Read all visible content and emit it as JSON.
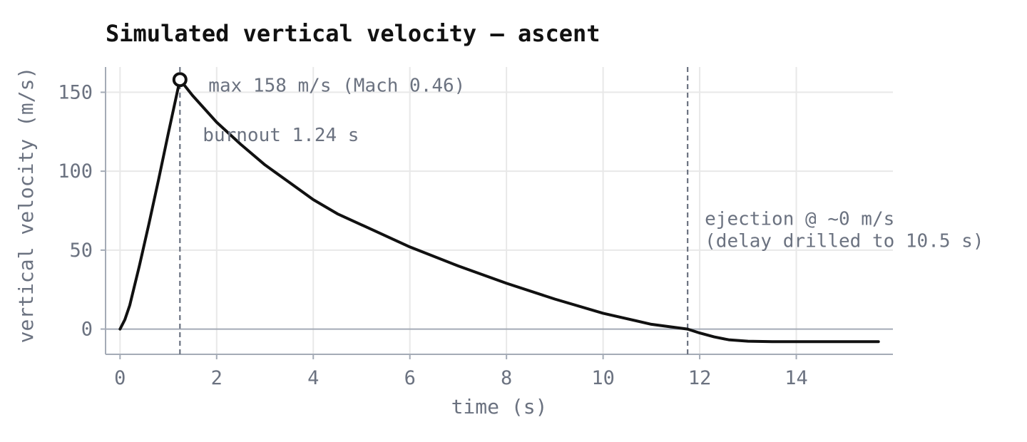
{
  "chart_data": {
    "type": "line",
    "title": "Simulated vertical velocity — ascent",
    "xlabel": "time (s)",
    "ylabel": "vertical velocity (m/s)",
    "xlim": [
      -0.3,
      16.0
    ],
    "ylim": [
      -16,
      166
    ],
    "xticks": [
      0,
      2,
      4,
      6,
      8,
      10,
      12,
      14
    ],
    "yticks": [
      0,
      50,
      100,
      150
    ],
    "grid": true,
    "colors": {
      "line": "#111111",
      "grid": "#e8e8e8",
      "axis": "#a4abb6",
      "marker_line": "#6b7280",
      "text": "#6b7280"
    },
    "series": [
      {
        "x": [
          0,
          0.1,
          0.2,
          0.4,
          0.6,
          0.8,
          1.0,
          1.24,
          1.5,
          2.0,
          2.5,
          3.0,
          3.5,
          4.0,
          4.5,
          5.0,
          6.0,
          7.0,
          8.0,
          9.0,
          10.0,
          11.0,
          11.75,
          12.0,
          12.3,
          12.6,
          13.0,
          13.5,
          14.0,
          15.0,
          15.7
        ],
        "y": [
          0,
          6,
          15,
          40,
          67,
          95,
          124,
          158,
          148,
          131,
          117,
          104,
          93,
          82,
          73,
          66,
          52,
          40,
          29,
          19,
          10,
          3,
          0,
          -2.5,
          -5,
          -6.8,
          -7.7,
          -8,
          -8,
          -8,
          -8
        ]
      }
    ],
    "max_point": {
      "x": 1.24,
      "y": 158
    },
    "vlines": [
      {
        "x": 1.24,
        "label": "burnout 1.24 s"
      },
      {
        "x": 11.75,
        "label": "ejection @ ~0 m/s",
        "label2": "(delay drilled to 10.5 s)"
      }
    ],
    "annotations": {
      "max": "max 158 m/s (Mach 0.46)"
    }
  }
}
